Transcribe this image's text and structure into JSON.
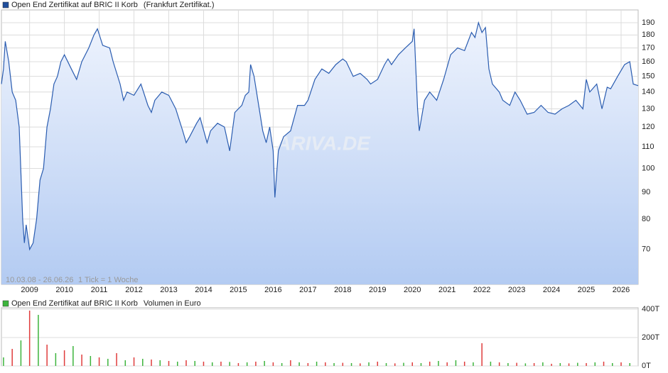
{
  "chart_data": [
    {
      "type": "line",
      "legend_color": "#1f4e9c",
      "subtitle": "(Frankfurt Zertifikat.)",
      "range_label": "10.03.08 - 26.06.26",
      "tick_label": "1 Tick = 1 Woche",
      "watermark": "ARIVA.DE",
      "log_scale": true,
      "grid": true,
      "xlim": [
        2008.19,
        2026.49
      ],
      "xticks": [
        2009,
        2010,
        2011,
        2012,
        2013,
        2014,
        2015,
        2016,
        2017,
        2018,
        2019,
        2020,
        2021,
        2022,
        2023,
        2024,
        2025,
        2026
      ],
      "ylim": [
        60,
        201
      ],
      "yticks": [
        70,
        80,
        90,
        100,
        110,
        120,
        130,
        140,
        150,
        160,
        170,
        180,
        190
      ],
      "series": [
        {
          "name": "Open End Zertifikat auf BRIC II Korb",
          "color": "#2a5cb0",
          "x": [
            2008.19,
            2008.25,
            2008.3,
            2008.4,
            2008.5,
            2008.6,
            2008.7,
            2008.8,
            2008.85,
            2008.9,
            2009.0,
            2009.1,
            2009.2,
            2009.3,
            2009.4,
            2009.5,
            2009.6,
            2009.7,
            2009.8,
            2009.9,
            2010.0,
            2010.2,
            2010.35,
            2010.5,
            2010.7,
            2010.85,
            2010.95,
            2011.1,
            2011.3,
            2011.4,
            2011.6,
            2011.7,
            2011.8,
            2012.0,
            2012.2,
            2012.4,
            2012.5,
            2012.6,
            2012.8,
            2013.0,
            2013.2,
            2013.4,
            2013.5,
            2013.6,
            2013.8,
            2013.9,
            2014.1,
            2014.2,
            2014.4,
            2014.6,
            2014.75,
            2014.9,
            2015.1,
            2015.2,
            2015.3,
            2015.35,
            2015.45,
            2015.6,
            2015.7,
            2015.8,
            2015.9,
            2016.0,
            2016.05,
            2016.15,
            2016.3,
            2016.5,
            2016.7,
            2016.9,
            2017.0,
            2017.2,
            2017.4,
            2017.6,
            2017.8,
            2018.0,
            2018.1,
            2018.3,
            2018.5,
            2018.7,
            2018.8,
            2019.0,
            2019.2,
            2019.3,
            2019.4,
            2019.6,
            2019.8,
            2020.0,
            2020.05,
            2020.15,
            2020.2,
            2020.35,
            2020.5,
            2020.7,
            2020.9,
            2021.1,
            2021.3,
            2021.5,
            2021.7,
            2021.8,
            2021.9,
            2022.0,
            2022.1,
            2022.2,
            2022.3,
            2022.5,
            2022.6,
            2022.8,
            2022.95,
            2023.1,
            2023.3,
            2023.5,
            2023.7,
            2023.9,
            2024.1,
            2024.3,
            2024.5,
            2024.7,
            2024.9,
            2025.0,
            2025.1,
            2025.3,
            2025.45,
            2025.6,
            2025.7,
            2025.9,
            2026.1,
            2026.25,
            2026.35,
            2026.49
          ],
          "values": [
            145,
            155,
            175,
            160,
            140,
            135,
            120,
            80,
            72,
            78,
            70,
            72,
            80,
            95,
            100,
            120,
            130,
            145,
            150,
            160,
            165,
            155,
            148,
            160,
            170,
            180,
            185,
            172,
            170,
            160,
            145,
            135,
            140,
            138,
            145,
            132,
            128,
            135,
            140,
            138,
            130,
            118,
            112,
            115,
            122,
            125,
            112,
            118,
            122,
            120,
            108,
            128,
            132,
            138,
            140,
            158,
            150,
            130,
            118,
            112,
            120,
            108,
            88,
            108,
            115,
            118,
            132,
            132,
            135,
            148,
            155,
            152,
            158,
            162,
            160,
            150,
            152,
            148,
            145,
            148,
            158,
            162,
            158,
            165,
            170,
            175,
            185,
            130,
            118,
            135,
            140,
            135,
            148,
            165,
            170,
            168,
            182,
            178,
            190,
            182,
            186,
            155,
            145,
            140,
            135,
            132,
            140,
            135,
            127,
            128,
            132,
            128,
            127,
            130,
            132,
            135,
            130,
            148,
            140,
            145,
            130,
            143,
            142,
            150,
            158,
            160,
            145,
            144
          ]
        }
      ]
    },
    {
      "type": "bar",
      "legend_color": "#3cb43c",
      "title": "Open End Zertifikat auf BRIC II Korb",
      "subtitle": "Volumen in Euro",
      "grid": true,
      "xlim": [
        2008.19,
        2026.49
      ],
      "ylim": [
        0,
        400
      ],
      "yticks": [
        {
          "value": 0,
          "label": "0T"
        },
        {
          "value": 200,
          "label": "200T"
        },
        {
          "value": 400,
          "label": "400T"
        }
      ],
      "series": [
        {
          "color": "#3cb43c",
          "x": [
            2008.25,
            2008.75,
            2009.25,
            2009.75,
            2010.25,
            2010.75,
            2011.25,
            2011.75,
            2012.25,
            2012.75,
            2013.25,
            2013.75,
            2014.25,
            2014.75,
            2015.25,
            2015.75,
            2016.25,
            2016.75,
            2017.25,
            2017.75,
            2018.25,
            2018.75,
            2019.25,
            2019.75,
            2020.25,
            2020.75,
            2021.25,
            2021.75,
            2022.25,
            2022.75,
            2023.25,
            2023.75,
            2024.25,
            2024.75,
            2025.25,
            2025.75,
            2026.25
          ],
          "values": [
            60,
            180,
            360,
            90,
            140,
            70,
            50,
            40,
            50,
            40,
            30,
            35,
            25,
            28,
            25,
            35,
            20,
            25,
            30,
            20,
            20,
            25,
            20,
            22,
            20,
            35,
            40,
            25,
            30,
            20,
            18,
            25,
            20,
            22,
            25,
            20,
            20
          ]
        },
        {
          "color": "#e03c3c",
          "x": [
            2008.5,
            2009,
            2009.5,
            2010,
            2010.5,
            2011,
            2011.5,
            2012,
            2012.5,
            2013,
            2013.5,
            2014,
            2014.5,
            2015,
            2015.5,
            2016,
            2016.5,
            2017,
            2017.5,
            2018,
            2018.5,
            2019,
            2019.5,
            2020,
            2020.5,
            2021,
            2021.5,
            2022,
            2022.5,
            2023,
            2023.5,
            2024,
            2024.5,
            2025,
            2025.5,
            2026
          ],
          "values": [
            120,
            390,
            150,
            110,
            80,
            60,
            90,
            60,
            45,
            35,
            40,
            30,
            30,
            20,
            30,
            25,
            40,
            20,
            25,
            22,
            18,
            30,
            18,
            25,
            30,
            25,
            30,
            160,
            25,
            22,
            20,
            15,
            18,
            20,
            30,
            25
          ]
        }
      ]
    }
  ]
}
